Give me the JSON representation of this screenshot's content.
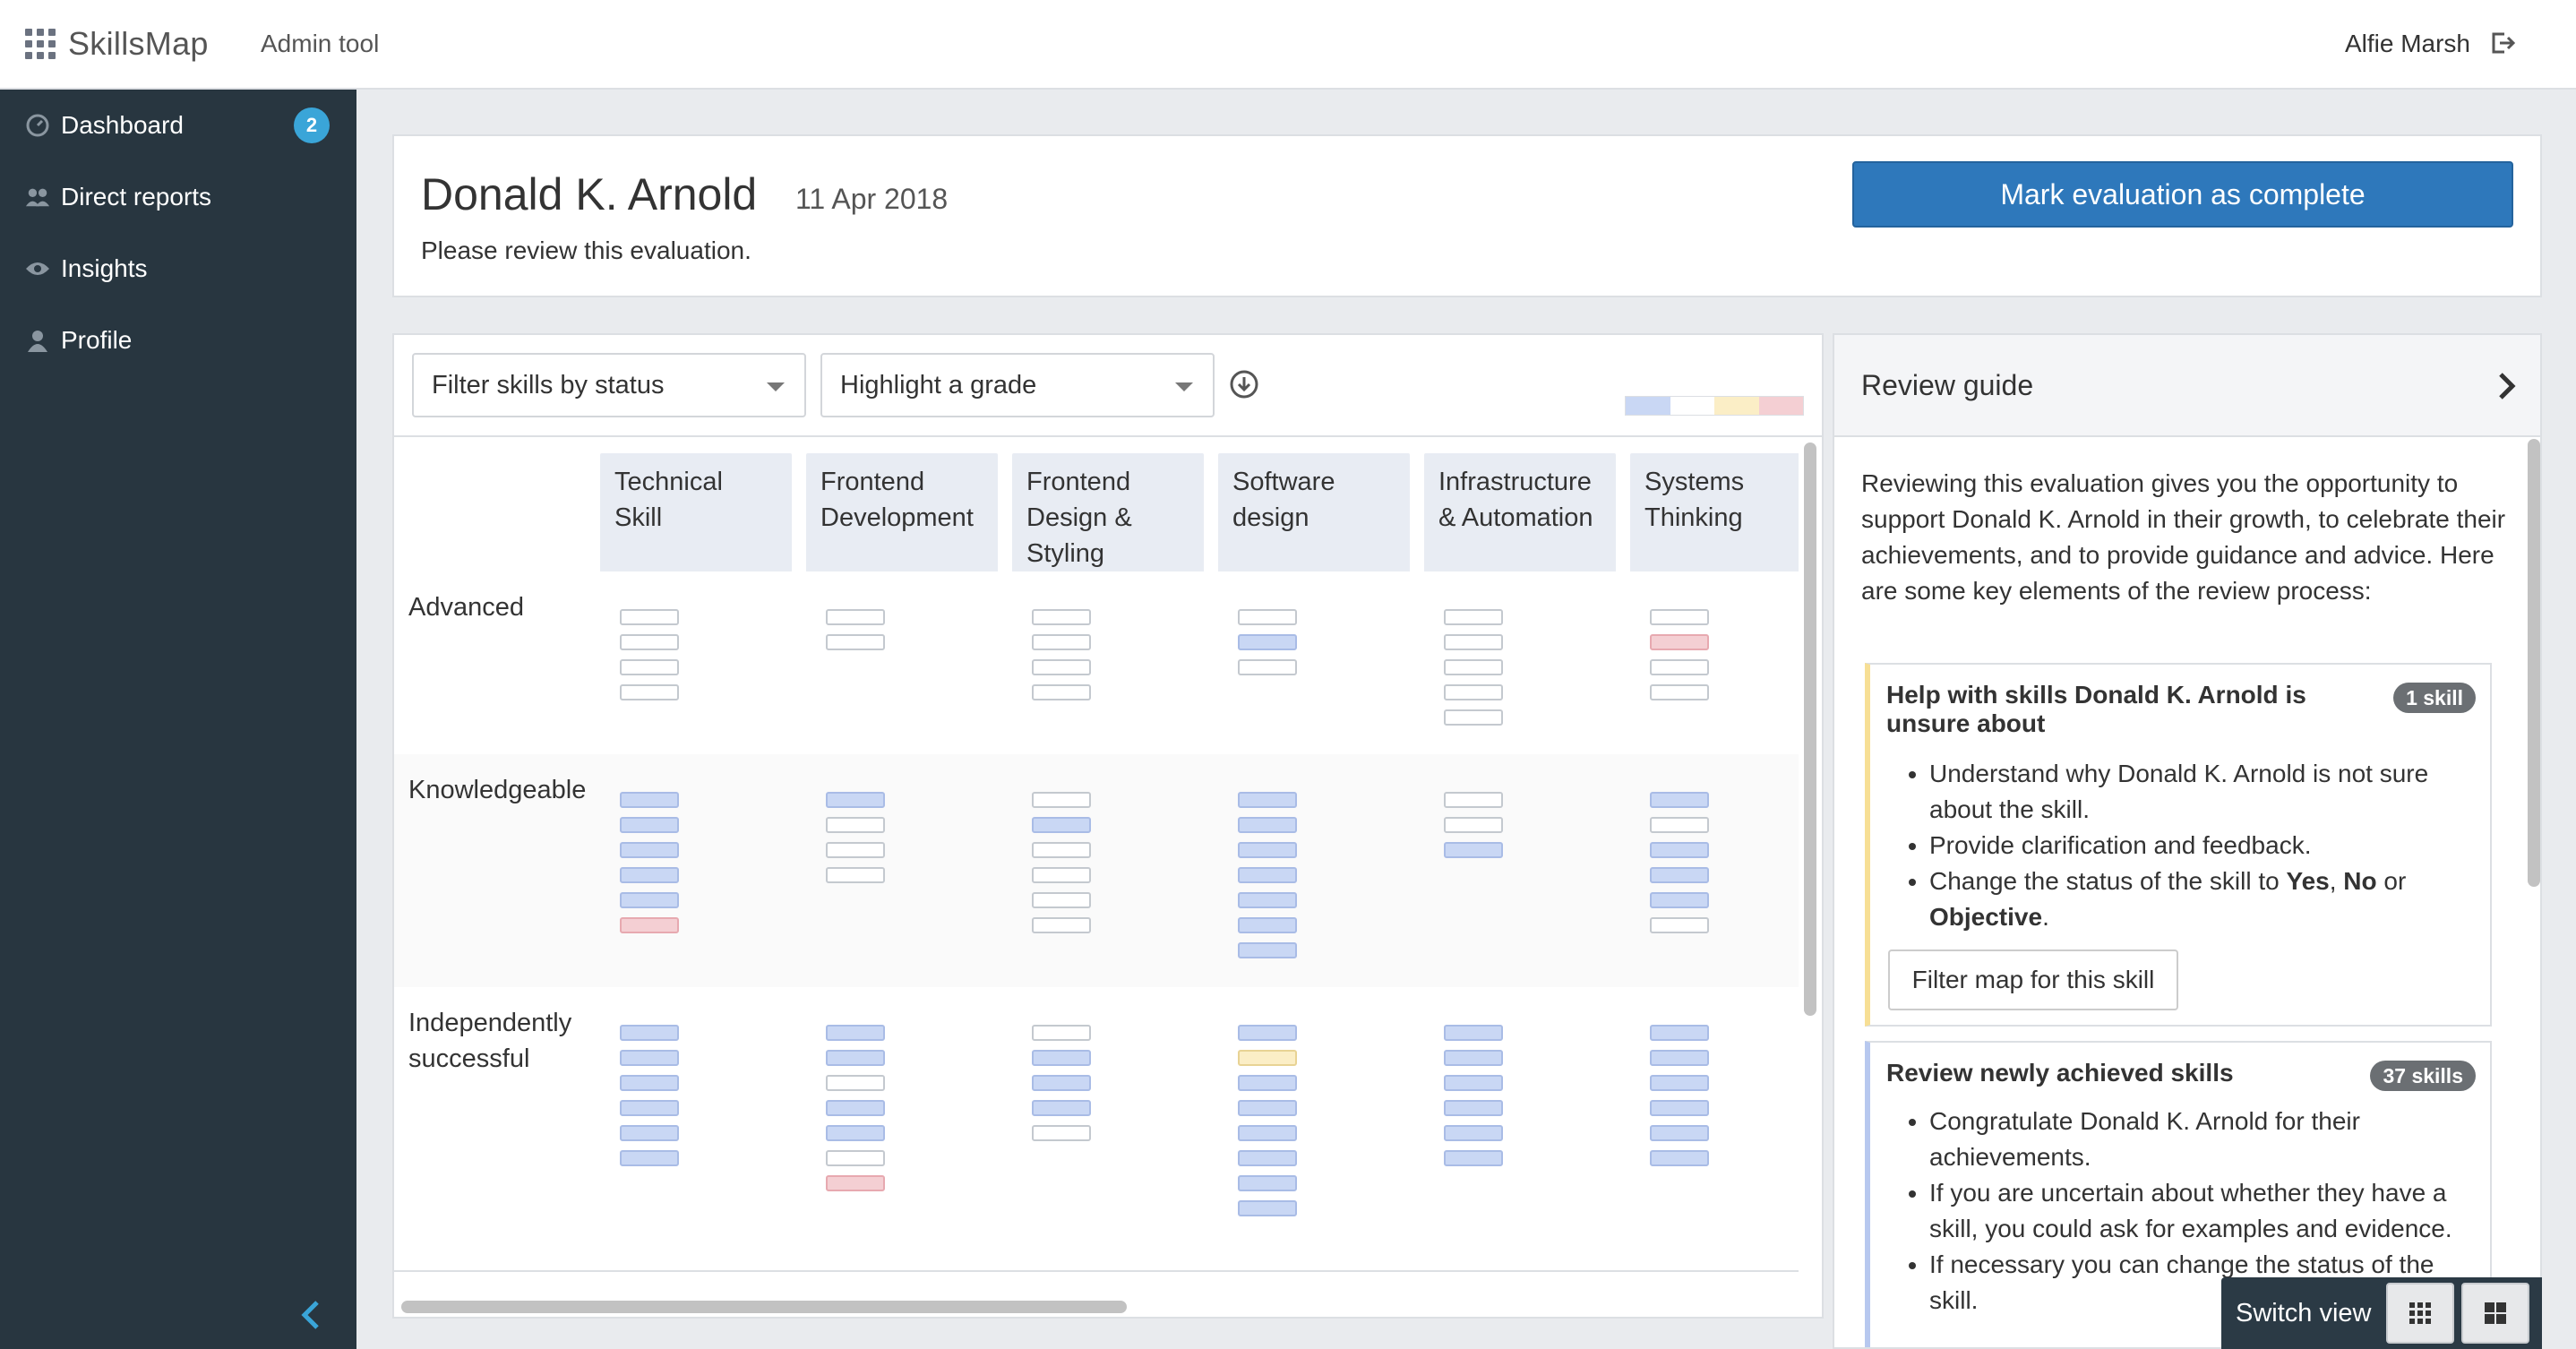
{
  "app": {
    "name": "SkillsMap",
    "admin_link": "Admin tool",
    "user": "Alfie Marsh"
  },
  "sidebar": {
    "items": [
      {
        "label": "Dashboard",
        "icon": "dashboard-icon",
        "badge": "2"
      },
      {
        "label": "Direct reports",
        "icon": "people-icon"
      },
      {
        "label": "Insights",
        "icon": "eye-icon"
      },
      {
        "label": "Profile",
        "icon": "user-icon"
      }
    ]
  },
  "header": {
    "name": "Donald K. Arnold",
    "date": "11 Apr 2018",
    "subtitle": "Please review this evaluation.",
    "complete_button": "Mark evaluation as complete"
  },
  "filters": {
    "status_placeholder": "Filter skills by status",
    "grade_placeholder": "Highlight a grade"
  },
  "legend_colors": [
    "#c9d7f4",
    "#ffffff",
    "#fbeec6",
    "#f4cfd3"
  ],
  "map": {
    "columns": [
      "Technical Skill",
      "Frontend Development",
      "Frontend Design & Styling",
      "Software design",
      "Infrastructure & Automation",
      "Systems Thinking"
    ],
    "rows": [
      {
        "label": "Advanced",
        "cells": [
          [
            "empty",
            "empty",
            "empty",
            "empty"
          ],
          [
            "empty",
            "empty"
          ],
          [
            "empty",
            "empty",
            "empty",
            "empty"
          ],
          [
            "empty",
            "blue",
            "empty"
          ],
          [
            "empty",
            "empty",
            "empty",
            "empty",
            "empty"
          ],
          [
            "empty",
            "red",
            "empty",
            "empty"
          ]
        ]
      },
      {
        "label": "Knowledgeable",
        "cells": [
          [
            "blue",
            "blue",
            "blue",
            "blue",
            "blue",
            "red"
          ],
          [
            "blue",
            "empty",
            "empty",
            "empty"
          ],
          [
            "empty",
            "blue",
            "empty",
            "empty",
            "empty",
            "empty"
          ],
          [
            "blue",
            "blue",
            "blue",
            "blue",
            "blue",
            "blue",
            "blue"
          ],
          [
            "empty",
            "empty",
            "blue"
          ],
          [
            "blue",
            "empty",
            "blue",
            "blue",
            "blue",
            "empty"
          ]
        ]
      },
      {
        "label": "Independently successful",
        "cells": [
          [
            "blue",
            "blue",
            "blue",
            "blue",
            "blue",
            "blue"
          ],
          [
            "blue",
            "blue",
            "empty",
            "blue",
            "blue",
            "empty",
            "red"
          ],
          [
            "empty",
            "blue",
            "blue",
            "blue",
            "empty"
          ],
          [
            "blue",
            "yellow",
            "blue",
            "blue",
            "blue",
            "blue",
            "blue",
            "blue"
          ],
          [
            "blue",
            "blue",
            "blue",
            "blue",
            "blue",
            "blue"
          ],
          [
            "blue",
            "blue",
            "blue",
            "blue",
            "blue",
            "blue"
          ]
        ]
      }
    ]
  },
  "guide": {
    "title": "Review guide",
    "intro": "Reviewing this evaluation gives you the opportunity to support Donald K. Arnold in their growth, to celebrate their achievements, and to provide guidance and advice. Here are some key elements of the review process:",
    "sections": [
      {
        "title": "Help with skills Donald K. Arnold is unsure about",
        "pill": "1 skill",
        "items": [
          "Understand why Donald K. Arnold is not sure about the skill.",
          "Provide clarification and feedback."
        ],
        "status_item": {
          "prefix": "Change the status of the skill to ",
          "yes": "Yes",
          "sep": ", ",
          "no": "No",
          "or": " or ",
          "objective": "Objective",
          "end": "."
        },
        "button": "Filter map for this skill"
      },
      {
        "title": "Review newly achieved skills",
        "pill": "37 skills",
        "items": [
          "Congratulate Donald K. Arnold for their achievements.",
          "If you are uncertain about whether they have a skill, you could ask for examples and evidence.",
          "If necessary you can change the status of the skill."
        ]
      }
    ]
  },
  "switch_view": {
    "label": "Switch view"
  }
}
